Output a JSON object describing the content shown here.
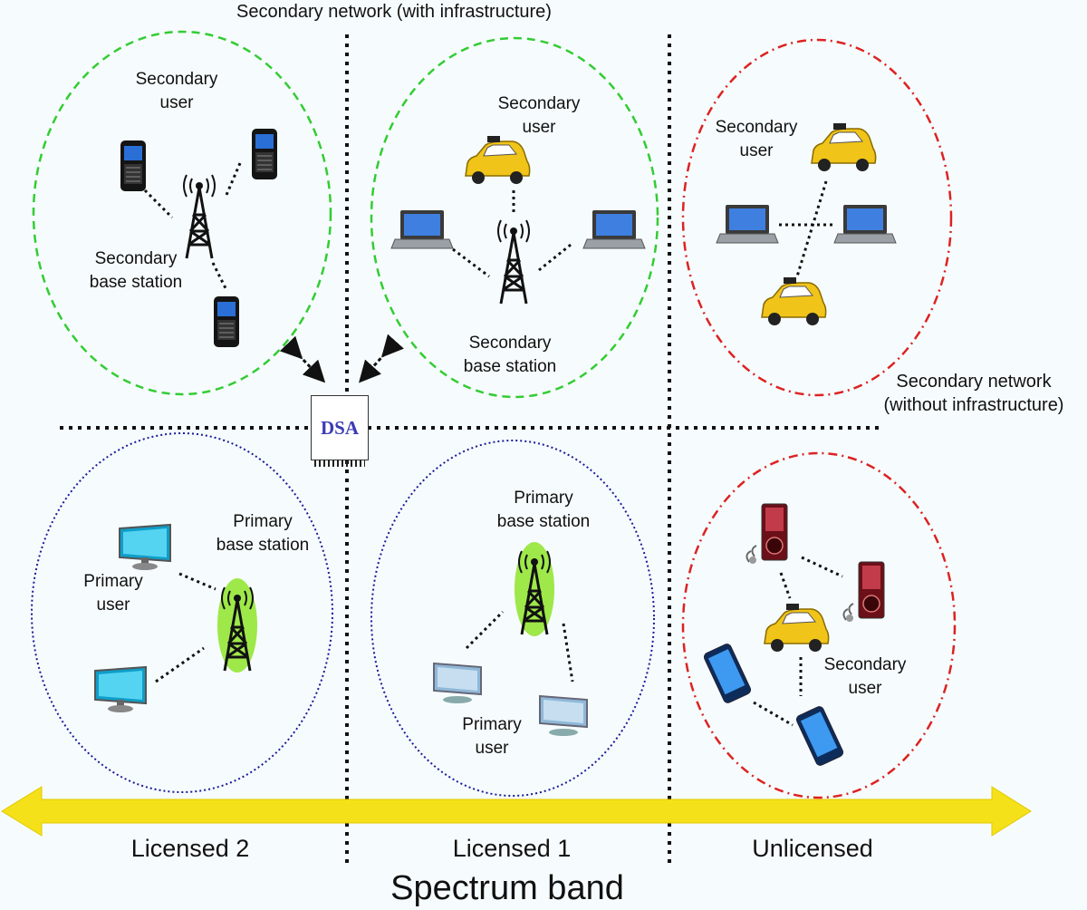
{
  "title": "Secondary network (with infrastructure)",
  "labels": {
    "su_licensed2": "Secondary\nuser",
    "sbs_licensed2": "Secondary\nbase station",
    "su_licensed1": "Secondary\nuser",
    "sbs_licensed1": "Secondary\nbase station",
    "su_unlicensed_top": "Secondary\nuser",
    "secondary_no_infra": "Secondary network\n(without infrastructure)",
    "pbs_licensed2": "Primary\nbase station",
    "pu_licensed2": "Primary\nuser",
    "pbs_licensed1": "Primary\nbase station",
    "pu_licensed1": "Primary\nuser",
    "su_unlicensed_bottom": "Secondary\nuser",
    "dsa": "DSA"
  },
  "bands": {
    "licensed2": "Licensed 2",
    "licensed1": "Licensed 1",
    "unlicensed": "Unlicensed"
  },
  "axis_label": "Spectrum band",
  "colors": {
    "secondary_infra_border": "#33cc33",
    "secondary_no_infra_border": "#dd2222",
    "primary_border": "#1a1a9a",
    "arrow": "#f5e11a",
    "dsa_text": "#3b3bb5"
  },
  "icons": [
    "phone-icon",
    "tower-icon",
    "car-icon",
    "laptop-icon",
    "monitor-icon",
    "media-player-icon",
    "smartphone-icon"
  ]
}
